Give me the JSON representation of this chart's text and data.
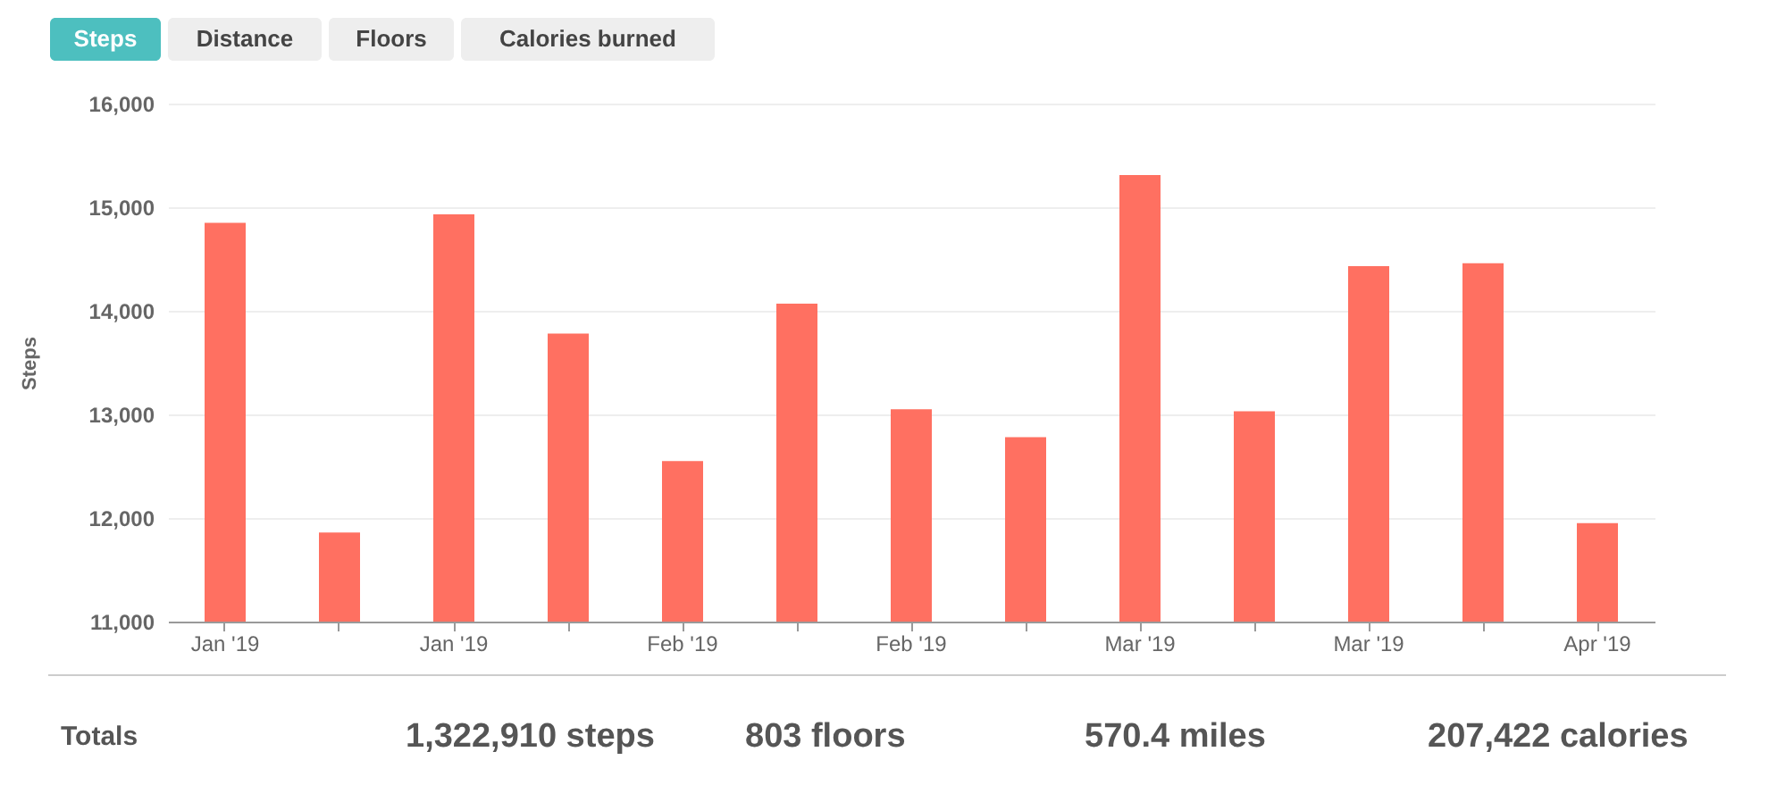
{
  "chart_data": {
    "type": "bar",
    "ylabel": "Steps",
    "categories": [
      "Jan '19",
      null,
      "Jan '19",
      null,
      "Feb '19",
      null,
      "Feb '19",
      null,
      "Mar '19",
      null,
      "Mar '19",
      null,
      "Apr '19"
    ],
    "values": [
      14850,
      11860,
      14930,
      13780,
      12550,
      14070,
      13050,
      12780,
      15310,
      13030,
      14430,
      14460,
      11950
    ],
    "color": "#ff7061",
    "ylim": [
      11000,
      16000
    ],
    "yticks": [
      {
        "value": 11000,
        "label": "11,000"
      },
      {
        "value": 12000,
        "label": "12,000"
      },
      {
        "value": 13000,
        "label": "13,000"
      },
      {
        "value": 14000,
        "label": "14,000"
      },
      {
        "value": 15000,
        "label": "15,000"
      },
      {
        "value": 16000,
        "label": "16,000"
      }
    ],
    "grid": "y",
    "annotations": [
      "Steps",
      "Distance",
      "Floors",
      "Calories burned",
      "Totals",
      "1,322,910 steps",
      "803 floors",
      "570.4 miles",
      "207,422 calories"
    ]
  }
}
